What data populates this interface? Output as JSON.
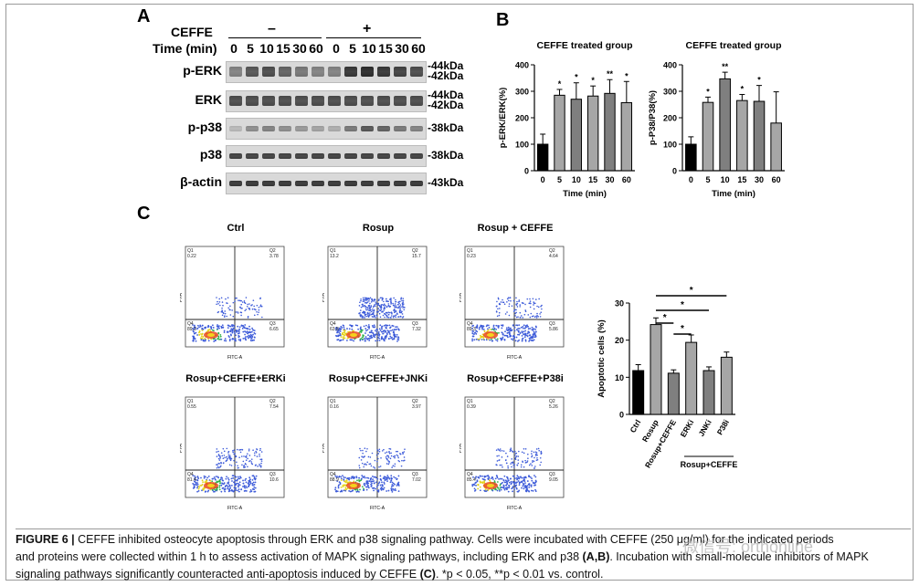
{
  "panelA": {
    "letter": "A",
    "cefffe_label": "CEFFE",
    "minus": "–",
    "plus": "+",
    "time_label": "Time (min)",
    "times": [
      "0",
      "5",
      "10",
      "15",
      "30",
      "60",
      "0",
      "5",
      "10",
      "15",
      "30",
      "60"
    ],
    "bands": [
      {
        "name": "p-ERK",
        "kda": [
          "-44kDa",
          "-42kDa"
        ],
        "intensity": [
          0.55,
          0.75,
          0.8,
          0.7,
          0.6,
          0.55,
          0.55,
          0.9,
          0.95,
          0.9,
          0.85,
          0.8
        ]
      },
      {
        "name": "ERK",
        "kda": [
          "-44kDa",
          "-42kDa"
        ],
        "intensity": [
          0.8,
          0.8,
          0.8,
          0.8,
          0.8,
          0.8,
          0.8,
          0.8,
          0.8,
          0.8,
          0.8,
          0.8
        ]
      },
      {
        "name": "p-p38",
        "kda": [
          "-38kDa"
        ],
        "intensity": [
          0.3,
          0.5,
          0.55,
          0.5,
          0.45,
          0.4,
          0.35,
          0.6,
          0.75,
          0.7,
          0.6,
          0.55
        ]
      },
      {
        "name": "p38",
        "kda": [
          "-38kDa"
        ],
        "intensity": [
          0.85,
          0.85,
          0.85,
          0.85,
          0.85,
          0.85,
          0.85,
          0.85,
          0.85,
          0.85,
          0.85,
          0.85
        ]
      },
      {
        "name": "β-actin",
        "kda": [
          "-43kDa"
        ],
        "intensity": [
          0.9,
          0.9,
          0.9,
          0.9,
          0.9,
          0.9,
          0.9,
          0.9,
          0.9,
          0.9,
          0.9,
          0.9
        ]
      }
    ]
  },
  "panelB": {
    "letter": "B"
  },
  "panelC": {
    "letter": "C",
    "flow": [
      {
        "title": "Ctrl",
        "q1": "0.22",
        "q2": "3.78",
        "q4": "89.3",
        "q3": "6.65"
      },
      {
        "title": "Rosup",
        "q1": "13.2",
        "q2": "15.7",
        "q4": "63.8",
        "q3": "7.32"
      },
      {
        "title": "Rosup + CEFFE",
        "q1": "0.23",
        "q2": "4.64",
        "q4": "89.3",
        "q3": "5.86"
      },
      {
        "title": "Rosup+CEFFE+ERKi",
        "q1": "0.55",
        "q2": "7.54",
        "q4": "81.4",
        "q3": "10.6"
      },
      {
        "title": "Rosup+CEFFE+JNKi",
        "q1": "0.16",
        "q2": "3.97",
        "q4": "88.9",
        "q3": "7.02"
      },
      {
        "title": "Rosup+CEFFE+P38i",
        "q1": "0.39",
        "q2": "5.26",
        "q4": "85.4",
        "q3": "9.05"
      }
    ],
    "axis_x": "FITC-A",
    "axis_y": "PI-A"
  },
  "chart_data": [
    {
      "type": "bar",
      "title": "CEFFE treated group",
      "xlabel": "Time (min)",
      "ylabel": "p-ERK/ERK(%)",
      "ylim": [
        0,
        400
      ],
      "yticks": [
        "0",
        "100",
        "200",
        "300",
        "400"
      ],
      "categories": [
        "0",
        "5",
        "10",
        "15",
        "30",
        "60"
      ],
      "values": [
        100,
        285,
        270,
        282,
        292,
        257
      ],
      "errors": [
        38,
        22,
        62,
        38,
        52,
        80
      ],
      "sig": [
        "",
        "*",
        "*",
        "*",
        "**",
        "*"
      ],
      "colors": [
        "#000000",
        "#a6a6a6",
        "#7f7f7f",
        "#a6a6a6",
        "#7f7f7f",
        "#a6a6a6"
      ]
    },
    {
      "type": "bar",
      "title": "CEFFE treated group",
      "xlabel": "Time (min)",
      "ylabel": "p-P38/P38(%)",
      "ylim": [
        0,
        400
      ],
      "yticks": [
        "0",
        "100",
        "200",
        "300",
        "400"
      ],
      "categories": [
        "0",
        "5",
        "10",
        "15",
        "30",
        "60"
      ],
      "values": [
        100,
        258,
        347,
        265,
        262,
        180
      ],
      "errors": [
        28,
        20,
        25,
        23,
        60,
        118
      ],
      "sig": [
        "",
        "*",
        "**",
        "*",
        "*",
        ""
      ],
      "colors": [
        "#000000",
        "#a6a6a6",
        "#7f7f7f",
        "#a6a6a6",
        "#7f7f7f",
        "#a6a6a6"
      ]
    },
    {
      "type": "bar",
      "title": "",
      "xlabel": "",
      "ylabel": "Apoptotic cells (%)",
      "ylim": [
        0,
        30
      ],
      "yticks": [
        "0",
        "10",
        "20",
        "30"
      ],
      "categories": [
        "Ctrl",
        "Rosup",
        "Rosup+CEFFE",
        "ERKi",
        "JNKi",
        "P38i"
      ],
      "group_label": "Rosup+CEFFE",
      "values": [
        11.8,
        24.2,
        11.1,
        19.4,
        11.8,
        15.4
      ],
      "errors": [
        1.6,
        1.8,
        0.9,
        2.0,
        1.0,
        1.4
      ],
      "sig_brackets": [
        {
          "from": 1,
          "to": 2,
          "label": "*"
        },
        {
          "from": 2,
          "to": 3,
          "label": "*"
        },
        {
          "from": 1,
          "to": 4,
          "label": "*"
        },
        {
          "from": 1,
          "to": 5,
          "label": "*"
        }
      ],
      "colors": [
        "#000000",
        "#a6a6a6",
        "#7f7f7f",
        "#a6a6a6",
        "#7f7f7f",
        "#a6a6a6"
      ]
    }
  ],
  "caption": {
    "fig": "FIGURE 6 |",
    "line1": " CEFFE inhibited osteocyte apoptosis through ERK and p38 signaling pathway. Cells were incubated with CEFFE (250 μg/ml) for the indicated periods",
    "line2a": "and proteins were collected within 1 h to assess activation of MAPK signaling pathways, including ERK and p38 ",
    "line2b": "(A,B)",
    "line2c": ". Incubation with small-molecule inhibitors of MAPK",
    "line3a": "signaling pathways significantly counteracted anti-apoptosis induced by CEFFE ",
    "line3b": "(C)",
    "line3c": ". *p < 0.05, **p < 0.01 vs. control."
  },
  "watermark": "微信号: orthonline"
}
